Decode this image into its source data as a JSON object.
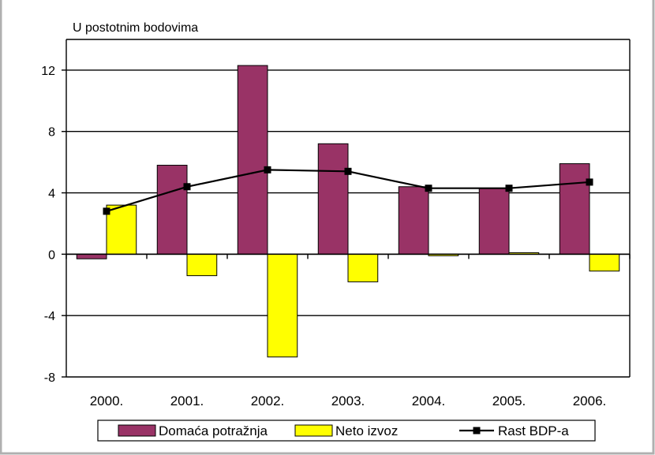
{
  "chart_data": {
    "type": "bar",
    "title": "",
    "ylabel": "U postotnim bodovima",
    "xlabel": "",
    "categories": [
      "2000.",
      "2001.",
      "2002.",
      "2003.",
      "2004.",
      "2005.",
      "2006."
    ],
    "ylim": [
      -8,
      14
    ],
    "yticks": [
      -8,
      -4,
      0,
      4,
      8,
      12
    ],
    "ytick_labels": [
      "-8",
      "-4",
      "0",
      "4",
      "8",
      "12"
    ],
    "grid": true,
    "legend_position": "bottom",
    "series": [
      {
        "name": "Domaća potražnja",
        "kind": "bar",
        "color": "#993366",
        "values": [
          -0.3,
          5.8,
          12.3,
          7.2,
          4.4,
          4.3,
          5.9
        ]
      },
      {
        "name": "Neto izvoz",
        "kind": "bar",
        "color": "#ffff00",
        "values": [
          3.2,
          -1.4,
          -6.7,
          -1.8,
          -0.1,
          0.1,
          -1.1
        ]
      },
      {
        "name": "Rast BDP-a",
        "kind": "line",
        "color": "#000000",
        "values": [
          2.8,
          4.4,
          5.5,
          5.4,
          4.3,
          4.3,
          4.7
        ]
      }
    ]
  }
}
